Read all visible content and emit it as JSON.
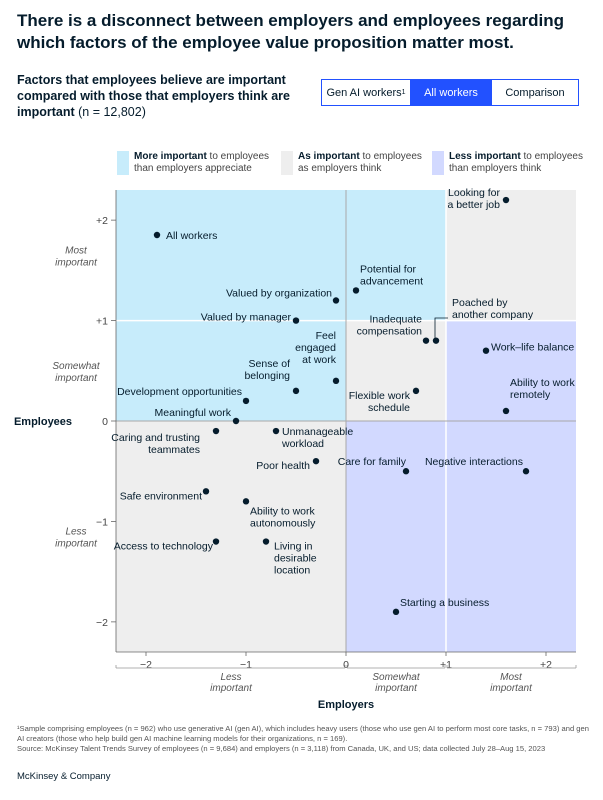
{
  "headline": "There is a disconnect between employers and employees regarding which factors of the employee value proposition matter most.",
  "subtitle": {
    "bold": "Factors that employees believe are important compared with those that employers think are important",
    "n": " (n = 12,802)"
  },
  "tabs": [
    {
      "label": "Gen AI workers",
      "sup": "1",
      "active": false
    },
    {
      "label": "All workers",
      "sup": "",
      "active": true
    },
    {
      "label": "Comparison",
      "sup": "",
      "active": false
    }
  ],
  "legend": [
    {
      "bold": "More important",
      "rest1": " to employees",
      "line2": "than employers appreciate",
      "color": "#c7ecfb"
    },
    {
      "bold": "As important",
      "rest1": " to employees",
      "line2": "as employers think",
      "color": "#eeeeee"
    },
    {
      "bold": "Less important",
      "rest1": " to employees",
      "line2": "than employers think",
      "color": "#d2d9ff"
    }
  ],
  "colors": {
    "more": "#c7ecfb",
    "as": "#eeeeee",
    "less": "#d2d9ff",
    "dot": "#051c2c",
    "accent": "#2251ff"
  },
  "chart_data": {
    "type": "scatter",
    "xlabel": "Employers",
    "ylabel": "Employees",
    "xlim": [
      -2.3,
      2.3
    ],
    "ylim": [
      -2.3,
      2.3
    ],
    "xticks": [
      {
        "v": -2,
        "t": "−2"
      },
      {
        "v": -1,
        "t": "−1"
      },
      {
        "v": 0,
        "t": "0"
      },
      {
        "v": 1,
        "t": "+1"
      },
      {
        "v": 2,
        "t": "+2"
      }
    ],
    "yticks": [
      {
        "v": 2,
        "t": "+2"
      },
      {
        "v": 1,
        "t": "+1"
      },
      {
        "v": 0,
        "t": "0"
      },
      {
        "v": -1,
        "t": "−1"
      },
      {
        "v": -2,
        "t": "−2"
      }
    ],
    "x_groups": [
      {
        "label": [
          "Less",
          "important"
        ],
        "from": -2.3,
        "to": 0
      },
      {
        "label": [
          "Somewhat",
          "important"
        ],
        "from": 0,
        "to": 1
      },
      {
        "label": [
          "Most",
          "important"
        ],
        "from": 1,
        "to": 2.3
      }
    ],
    "y_groups": [
      {
        "label": [
          "Most",
          "important"
        ],
        "from": 1,
        "to": 2.3
      },
      {
        "label": [
          "Somewhat",
          "important"
        ],
        "from": 0,
        "to": 1
      },
      {
        "label": [
          "Less",
          "important"
        ],
        "from": -2.3,
        "to": 0
      }
    ],
    "series_label": "All workers",
    "points": [
      {
        "label": [
          "Looking for",
          "a better job"
        ],
        "x": 1.6,
        "y": 2.2
      },
      {
        "label": [
          "Potential for",
          "advancement"
        ],
        "x": 0.1,
        "y": 1.3
      },
      {
        "label": [
          "Valued by organization"
        ],
        "x": -0.1,
        "y": 1.2
      },
      {
        "label": [
          "Poached by",
          "another company"
        ],
        "x": 0.9,
        "y": 0.8
      },
      {
        "label": [
          "Valued by manager"
        ],
        "x": -0.5,
        "y": 1.0
      },
      {
        "label": [
          "Inadequate",
          "compensation"
        ],
        "x": 0.8,
        "y": 0.8
      },
      {
        "label": [
          "Work–life balance"
        ],
        "x": 1.4,
        "y": 0.7
      },
      {
        "label": [
          "Feel",
          "engaged",
          "at work"
        ],
        "x": -0.1,
        "y": 0.4
      },
      {
        "label": [
          "Sense of",
          "belonging"
        ],
        "x": -0.5,
        "y": 0.3
      },
      {
        "label": [
          "Development opportunities"
        ],
        "x": -1.0,
        "y": 0.2
      },
      {
        "label": [
          "Flexible work",
          "schedule"
        ],
        "x": 0.7,
        "y": 0.3
      },
      {
        "label": [
          "Ability to work",
          "remotely"
        ],
        "x": 1.6,
        "y": 0.1
      },
      {
        "label": [
          "Meaningful work"
        ],
        "x": -1.1,
        "y": 0.0
      },
      {
        "label": [
          "Caring and trusting",
          "teammates"
        ],
        "x": -1.3,
        "y": -0.1
      },
      {
        "label": [
          "Unmanageable",
          "workload"
        ],
        "x": -0.7,
        "y": -0.1
      },
      {
        "label": [
          "Poor health"
        ],
        "x": -0.3,
        "y": -0.4
      },
      {
        "label": [
          "Care for family"
        ],
        "x": 0.6,
        "y": -0.5
      },
      {
        "label": [
          "Negative interactions"
        ],
        "x": 1.8,
        "y": -0.5
      },
      {
        "label": [
          "Safe environment"
        ],
        "x": -1.4,
        "y": -0.7
      },
      {
        "label": [
          "Ability to work",
          "autonomously"
        ],
        "x": -1.0,
        "y": -0.8
      },
      {
        "label": [
          "Access to technology"
        ],
        "x": -1.3,
        "y": -1.2
      },
      {
        "label": [
          "Living in",
          "desirable",
          "location"
        ],
        "x": -0.8,
        "y": -1.2
      },
      {
        "label": [
          "Starting a business"
        ],
        "x": 0.5,
        "y": -1.9
      }
    ]
  },
  "footnote": [
    "¹Sample comprising employees (n = 962) who use generative AI (gen AI), which includes heavy users (those who use gen AI to perform most core tasks, n = 793) and gen AI creators (those who help build gen AI machine learning models for their organizations, n = 169).",
    "Source: McKinsey Talent Trends Survey of employees (n = 9,684) and employers (n = 3,118) from Canada, UK, and US; data collected July 28–Aug 15, 2023"
  ],
  "brand": "McKinsey & Company"
}
